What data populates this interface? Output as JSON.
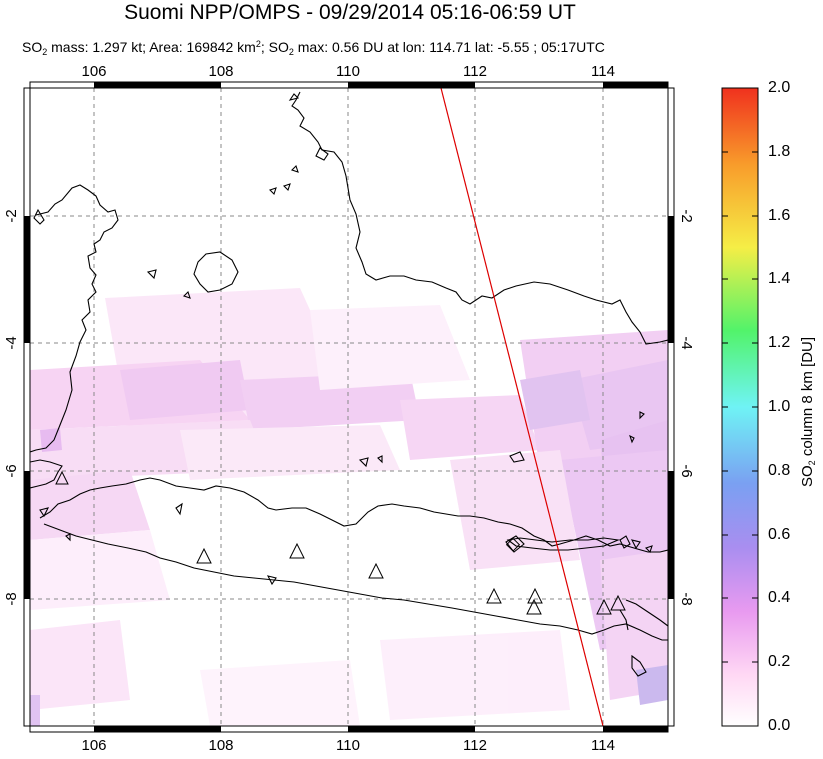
{
  "title": "Suomi NPP/OMPS - 09/29/2014 05:16-06:59 UT",
  "subtitle": {
    "p1": "SO",
    "p1_sub": "2",
    "p2": " mass: 1.297 kt; Area: 169842 km",
    "p2_sup": "2",
    "p3": "; SO",
    "p3_sub": "2",
    "p4": " max: 0.56 DU at lon: 114.71 lat: -5.55 ; 05:17UTC"
  },
  "map": {
    "lon_ticks": [
      "106",
      "108",
      "110",
      "112",
      "114"
    ],
    "lat_ticks": [
      "-2",
      "-4",
      "-6",
      "-8"
    ],
    "colors": {
      "coast": "#000000",
      "grid": "#888888",
      "track": "#dd0000",
      "frame": "#000000"
    }
  },
  "colorbar": {
    "ticks": [
      "2.0",
      "1.8",
      "1.6",
      "1.4",
      "1.2",
      "1.0",
      "0.8",
      "0.6",
      "0.4",
      "0.2",
      "0.0"
    ],
    "label_pre": "SO",
    "label_sub": "2",
    "label_post": " column 8 km [DU]",
    "stops": [
      "#ffffff",
      "#ffd8f4",
      "#e28ff0",
      "#a78cf0",
      "#6fa8f2",
      "#6ff3f5",
      "#52f36a",
      "#f5ee46",
      "#f89c2b",
      "#f0311e"
    ]
  }
}
